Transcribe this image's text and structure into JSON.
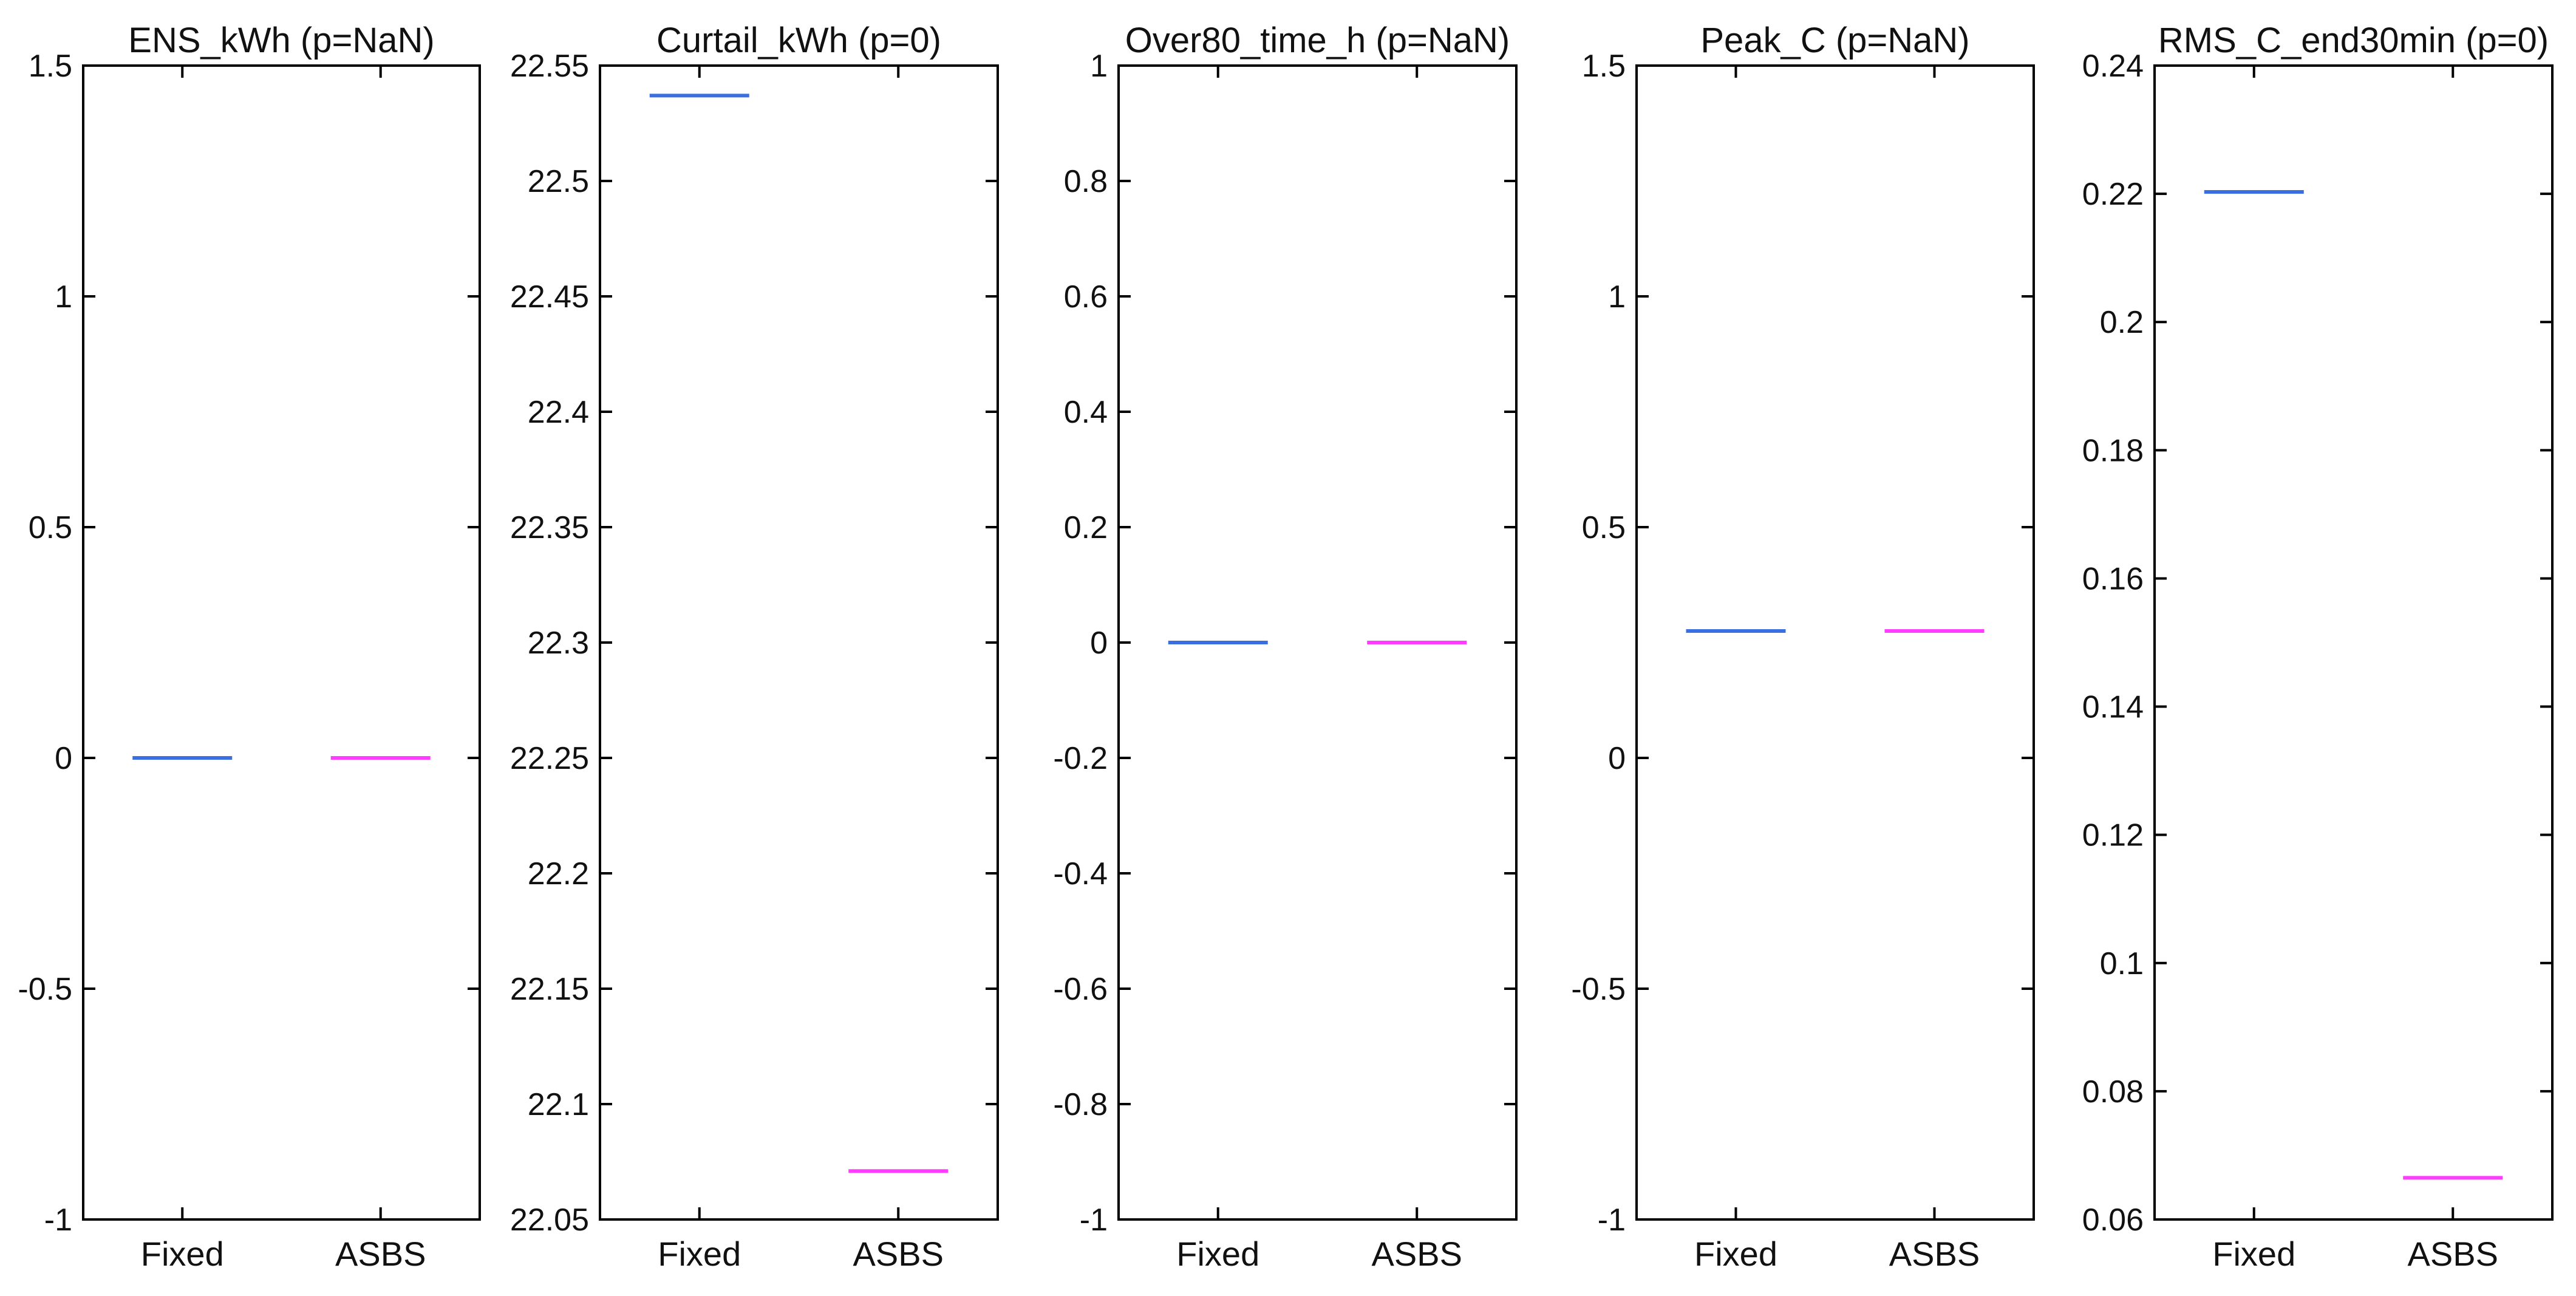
{
  "chart_data": [
    {
      "type": "scatter",
      "title": "ENS_kWh (p=NaN)",
      "categories": [
        "Fixed",
        "ASBS"
      ],
      "ylim": [
        -1,
        1.5
      ],
      "yticks": [
        -1,
        -0.5,
        0,
        0.5,
        1,
        1.5
      ],
      "ytick_labels": [
        "-1",
        "-0.5",
        "0",
        "0.5",
        "1",
        "1.5"
      ],
      "series": [
        {
          "category": "Fixed",
          "values": [
            0
          ],
          "color": "#3b6fe0"
        },
        {
          "category": "ASBS",
          "values": [
            0
          ],
          "color": "#ff3cff"
        }
      ],
      "grid": false
    },
    {
      "type": "scatter",
      "title": "Curtail_kWh (p=0)",
      "categories": [
        "Fixed",
        "ASBS"
      ],
      "ylim": [
        22.05,
        22.55
      ],
      "yticks": [
        22.05,
        22.1,
        22.15,
        22.2,
        22.25,
        22.3,
        22.35,
        22.4,
        22.45,
        22.5,
        22.55
      ],
      "ytick_labels": [
        "22.05",
        "22.1",
        "22.15",
        "22.2",
        "22.25",
        "22.3",
        "22.35",
        "22.4",
        "22.45",
        "22.5",
        "22.55"
      ],
      "series": [
        {
          "category": "Fixed",
          "values": [
            22.537
          ],
          "color": "#3b6fe0"
        },
        {
          "category": "ASBS",
          "values": [
            22.071
          ],
          "color": "#ff3cff"
        }
      ],
      "grid": false
    },
    {
      "type": "scatter",
      "title": "Over80_time_h (p=NaN)",
      "categories": [
        "Fixed",
        "ASBS"
      ],
      "ylim": [
        -1,
        1
      ],
      "yticks": [
        -1,
        -0.8,
        -0.6,
        -0.4,
        -0.2,
        0,
        0.2,
        0.4,
        0.6,
        0.8,
        1
      ],
      "ytick_labels": [
        "-1",
        "-0.8",
        "-0.6",
        "-0.4",
        "-0.2",
        "0",
        "0.2",
        "0.4",
        "0.6",
        "0.8",
        "1"
      ],
      "series": [
        {
          "category": "Fixed",
          "values": [
            0
          ],
          "color": "#3b6fe0"
        },
        {
          "category": "ASBS",
          "values": [
            0
          ],
          "color": "#ff3cff"
        }
      ],
      "grid": false
    },
    {
      "type": "scatter",
      "title": "Peak_C (p=NaN)",
      "categories": [
        "Fixed",
        "ASBS"
      ],
      "ylim": [
        -1,
        1.5
      ],
      "yticks": [
        -1,
        -0.5,
        0,
        0.5,
        1,
        1.5
      ],
      "ytick_labels": [
        "-1",
        "-0.5",
        "0",
        "0.5",
        "1",
        "1.5"
      ],
      "series": [
        {
          "category": "Fixed",
          "values": [
            0.275
          ],
          "color": "#3b6fe0"
        },
        {
          "category": "ASBS",
          "values": [
            0.275
          ],
          "color": "#ff3cff"
        }
      ],
      "grid": false
    },
    {
      "type": "scatter",
      "title": "RMS_C_end30min (p=0)",
      "categories": [
        "Fixed",
        "ASBS"
      ],
      "ylim": [
        0.06,
        0.24
      ],
      "yticks": [
        0.06,
        0.08,
        0.1,
        0.12,
        0.14,
        0.16,
        0.18,
        0.2,
        0.22,
        0.24
      ],
      "ytick_labels": [
        "0.06",
        "0.08",
        "0.1",
        "0.12",
        "0.14",
        "0.16",
        "0.18",
        "0.2",
        "0.22",
        "0.24"
      ],
      "series": [
        {
          "category": "Fixed",
          "values": [
            0.2203
          ],
          "color": "#3b6fe0"
        },
        {
          "category": "ASBS",
          "values": [
            0.0665
          ],
          "color": "#ff3cff"
        }
      ],
      "grid": false
    }
  ]
}
